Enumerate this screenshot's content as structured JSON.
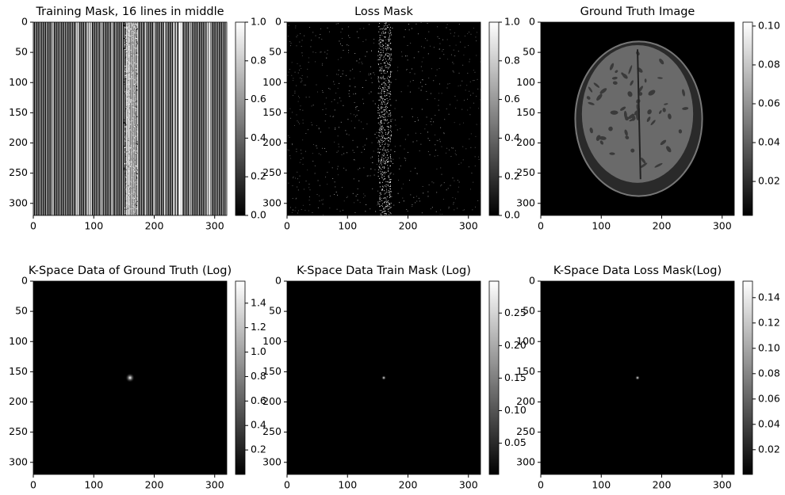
{
  "chart_data": [
    {
      "type": "image",
      "title": "Training Mask, 16 lines in middle",
      "colormap": "gray",
      "xlim": [
        0,
        320
      ],
      "ylim": [
        320,
        0
      ],
      "xticks": [
        0,
        100,
        200,
        300
      ],
      "yticks": [
        0,
        50,
        100,
        150,
        200,
        250,
        300
      ],
      "clim": [
        0,
        1
      ],
      "cticks": [
        {
          "value": 0,
          "label": "0.0"
        },
        0.2,
        0.4,
        0.6,
        0.8,
        {
          "value": 1,
          "label": "1.0"
        }
      ]
    },
    {
      "type": "image",
      "title": "Loss Mask",
      "colormap": "gray",
      "xlim": [
        0,
        320
      ],
      "ylim": [
        320,
        0
      ],
      "xticks": [
        0,
        100,
        200,
        300
      ],
      "yticks": [
        0,
        50,
        100,
        150,
        200,
        250,
        300
      ],
      "clim": [
        0,
        1
      ],
      "cticks": [
        {
          "value": 0,
          "label": "0.0"
        },
        0.2,
        0.4,
        0.6,
        0.8,
        {
          "value": 1,
          "label": "1.0"
        }
      ]
    },
    {
      "type": "image",
      "title": "Ground Truth Image",
      "colormap": "gray",
      "xlim": [
        0,
        320
      ],
      "ylim": [
        320,
        0
      ],
      "xticks": [
        0,
        100,
        200,
        300
      ],
      "yticks": [
        0,
        50,
        100,
        150,
        200,
        250,
        300
      ],
      "clim": [
        0.0025,
        0.102
      ],
      "cticks": [
        0.02,
        0.04,
        0.06,
        0.08,
        {
          "value": 0.1,
          "label": "0.10"
        }
      ]
    },
    {
      "type": "image",
      "title": "K-Space Data of Ground Truth (Log)",
      "colormap": "gray",
      "xlim": [
        0,
        320
      ],
      "ylim": [
        320,
        0
      ],
      "xticks": [
        0,
        100,
        200,
        300
      ],
      "yticks": [
        0,
        50,
        100,
        150,
        200,
        250,
        300
      ],
      "clim": [
        0,
        1.58
      ],
      "cticks": [
        0.2,
        0.4,
        0.6,
        0.8,
        {
          "value": 1,
          "label": "1.0"
        },
        1.2,
        1.4
      ]
    },
    {
      "type": "image",
      "title": "K-Space Data Train Mask (Log)",
      "colormap": "gray",
      "xlim": [
        0,
        320
      ],
      "ylim": [
        320,
        0
      ],
      "xticks": [
        0,
        100,
        200,
        300
      ],
      "yticks": [
        0,
        50,
        100,
        150,
        200,
        250,
        300
      ],
      "clim": [
        0.002,
        0.299
      ],
      "cticks": [
        0.05,
        {
          "value": 0.1,
          "label": "0.10"
        },
        0.15,
        {
          "value": 0.2,
          "label": "0.20"
        },
        0.25
      ]
    },
    {
      "type": "image",
      "title": "K-Space Data Loss Mask(Log)",
      "colormap": "gray",
      "xlim": [
        0,
        320
      ],
      "ylim": [
        320,
        0
      ],
      "xticks": [
        0,
        100,
        200,
        300
      ],
      "yticks": [
        0,
        50,
        100,
        150,
        200,
        250,
        300
      ],
      "clim": [
        0.0005,
        0.153
      ],
      "cticks": [
        0.02,
        0.04,
        0.06,
        0.08,
        {
          "value": 0.1,
          "label": "0.10"
        },
        0.12,
        0.14
      ]
    }
  ]
}
